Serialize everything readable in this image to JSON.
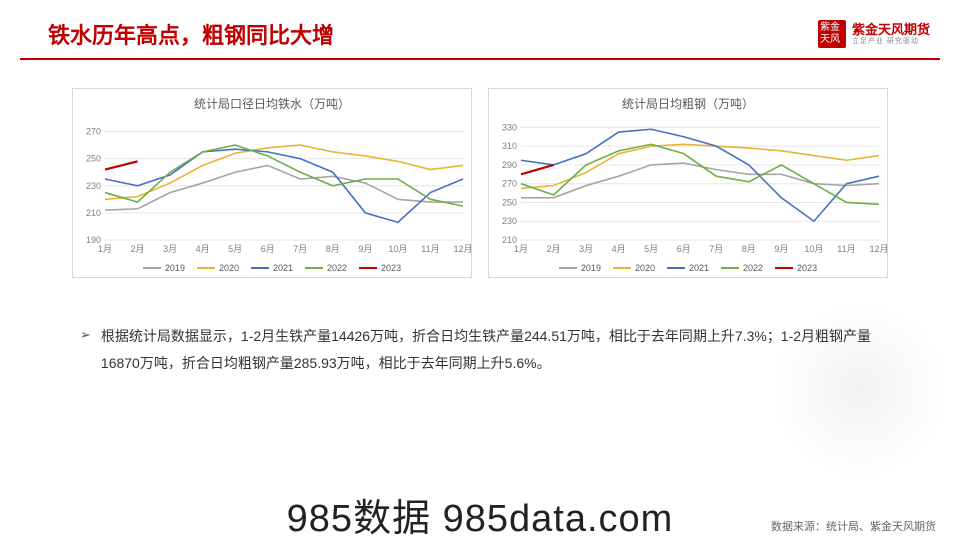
{
  "header": {
    "title": "铁水历年高点，粗钢同比大增",
    "logo_seal": "紫金天风",
    "logo_main": "紫金天风期货",
    "logo_sub": "立足产业 研究驱动"
  },
  "chart1": {
    "type": "line",
    "title": "统计局口径日均铁水（万吨）",
    "x_labels": [
      "1月",
      "2月",
      "3月",
      "4月",
      "5月",
      "6月",
      "7月",
      "8月",
      "9月",
      "10月",
      "11月",
      "12月"
    ],
    "ylim": [
      190,
      280
    ],
    "ytick_step": 20,
    "background_color": "#ffffff",
    "grid_color": "#e6e6e6",
    "title_fontsize": 12,
    "label_fontsize": 9,
    "series": [
      {
        "name": "2019",
        "color": "#a6a6a6",
        "values": [
          212,
          213,
          225,
          232,
          240,
          245,
          235,
          237,
          232,
          220,
          218,
          218
        ]
      },
      {
        "name": "2020",
        "color": "#e8b430",
        "values": [
          220,
          222,
          232,
          245,
          254,
          258,
          260,
          255,
          252,
          248,
          242,
          245
        ]
      },
      {
        "name": "2021",
        "color": "#4472c4",
        "values": [
          235,
          230,
          238,
          255,
          257,
          255,
          250,
          240,
          210,
          203,
          225,
          235
        ]
      },
      {
        "name": "2022",
        "color": "#70ad47",
        "values": [
          225,
          218,
          240,
          255,
          260,
          252,
          240,
          230,
          235,
          235,
          220,
          215
        ]
      },
      {
        "name": "2023",
        "color": "#c00000",
        "values": [
          242,
          248
        ]
      }
    ]
  },
  "chart2": {
    "type": "line",
    "title": "统计局日均粗钢（万吨）",
    "x_labels": [
      "1月",
      "2月",
      "3月",
      "4月",
      "5月",
      "6月",
      "7月",
      "8月",
      "9月",
      "10月",
      "11月",
      "12月"
    ],
    "ylim": [
      210,
      340
    ],
    "ytick_step": 20,
    "background_color": "#ffffff",
    "grid_color": "#e6e6e6",
    "title_fontsize": 12,
    "label_fontsize": 9,
    "series": [
      {
        "name": "2019",
        "color": "#a6a6a6",
        "values": [
          255,
          255,
          268,
          278,
          290,
          292,
          285,
          280,
          280,
          270,
          268,
          270
        ]
      },
      {
        "name": "2020",
        "color": "#e8b430",
        "values": [
          265,
          268,
          282,
          302,
          310,
          312,
          310,
          308,
          305,
          300,
          295,
          300
        ]
      },
      {
        "name": "2021",
        "color": "#4472c4",
        "values": [
          295,
          290,
          302,
          325,
          328,
          320,
          310,
          290,
          255,
          230,
          270,
          278
        ]
      },
      {
        "name": "2022",
        "color": "#70ad47",
        "values": [
          270,
          258,
          290,
          305,
          312,
          302,
          278,
          272,
          290,
          270,
          250,
          248
        ]
      },
      {
        "name": "2023",
        "color": "#c00000",
        "values": [
          280,
          290
        ]
      }
    ]
  },
  "legend_years": [
    "2019",
    "2020",
    "2021",
    "2022",
    "2023"
  ],
  "body": {
    "text": "根据统计局数据显示，1-2月生铁产量14426万吨，折合日均生铁产量244.51万吨，相比于去年同期上升7.3%；1-2月粗钢产量16870万吨，折合日均粗钢产量285.93万吨，相比于去年同期上升5.6%。"
  },
  "source": "数据来源：统计局、紫金天风期货",
  "watermark": "985数据 985data.com"
}
